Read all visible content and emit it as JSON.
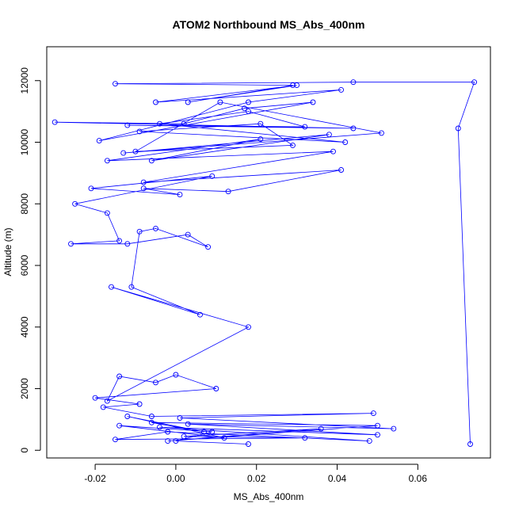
{
  "chart_data": {
    "type": "line",
    "title": "ATOM2 Northbound MS_Abs_400nm",
    "xlabel": "MS_Abs_400nm",
    "ylabel": "Altitude (m)",
    "xlim": [
      -0.032,
      0.078
    ],
    "ylim": [
      -250,
      13100
    ],
    "grid": false,
    "line_color": "#0000ff",
    "marker": "open-circle",
    "x_ticks": [
      {
        "value": -0.02,
        "label": "-0.02"
      },
      {
        "value": 0.0,
        "label": "0.00"
      },
      {
        "value": 0.02,
        "label": "0.02"
      },
      {
        "value": 0.04,
        "label": "0.04"
      },
      {
        "value": 0.06,
        "label": "0.06"
      }
    ],
    "y_ticks": [
      {
        "value": 0,
        "label": "0"
      },
      {
        "value": 2000,
        "label": "2000"
      },
      {
        "value": 4000,
        "label": "4000"
      },
      {
        "value": 6000,
        "label": "6000"
      },
      {
        "value": 8000,
        "label": "8000"
      },
      {
        "value": 10000,
        "label": "10000"
      },
      {
        "value": 12000,
        "label": "12000"
      }
    ],
    "series": [
      {
        "x": [
          0.073,
          0.07,
          0.074,
          0.044,
          -0.015,
          0.029,
          0.003,
          0.03,
          -0.005,
          0.041,
          0.018,
          -0.019,
          0.034,
          0.017,
          0.002,
          -0.03,
          0.044,
          -0.012,
          0.032,
          0.018,
          -0.004,
          0.042,
          -0.009,
          0.021,
          0.029,
          -0.01,
          0.011,
          0.051,
          -0.013,
          0.038,
          -0.006,
          0.021,
          -0.017,
          0.039,
          -0.008,
          0.041,
          0.013,
          -0.008,
          0.001,
          -0.021,
          0.009,
          -0.025,
          -0.017,
          -0.014,
          -0.026,
          -0.012,
          0.003,
          0.008,
          -0.005,
          -0.009,
          -0.011,
          0.006,
          -0.016,
          0.018,
          -0.017,
          -0.014,
          -0.005,
          0.0,
          0.01,
          -0.02,
          -0.009,
          -0.018,
          -0.006,
          0.049,
          0.001,
          0.054,
          0.003,
          0.05,
          -0.004,
          0.048,
          -0.002,
          -0.015,
          0.032,
          0.002,
          0.036,
          -0.002,
          0.05,
          -0.006,
          0.007,
          -0.012,
          0.012,
          -0.014,
          0.009,
          0.0,
          0.018
        ],
        "y": [
          200,
          10450,
          11950,
          11950,
          11900,
          11850,
          11300,
          11850,
          11300,
          11700,
          11300,
          10050,
          11300,
          11100,
          10600,
          10650,
          10450,
          10550,
          10500,
          11000,
          10600,
          10000,
          10350,
          10600,
          9900,
          9700,
          11300,
          10300,
          9650,
          10250,
          9400,
          10100,
          9400,
          9700,
          8700,
          9100,
          8400,
          8500,
          8300,
          8500,
          8900,
          8000,
          7700,
          6800,
          6700,
          6700,
          7000,
          6600,
          7200,
          7100,
          5300,
          4400,
          5300,
          4000,
          1600,
          2400,
          2200,
          2450,
          2000,
          1700,
          1500,
          1400,
          1100,
          1200,
          1050,
          700,
          850,
          500,
          750,
          300,
          600,
          350,
          400,
          450,
          700,
          300,
          800,
          900,
          600,
          1100,
          400,
          800,
          600,
          300,
          200
        ]
      }
    ]
  }
}
